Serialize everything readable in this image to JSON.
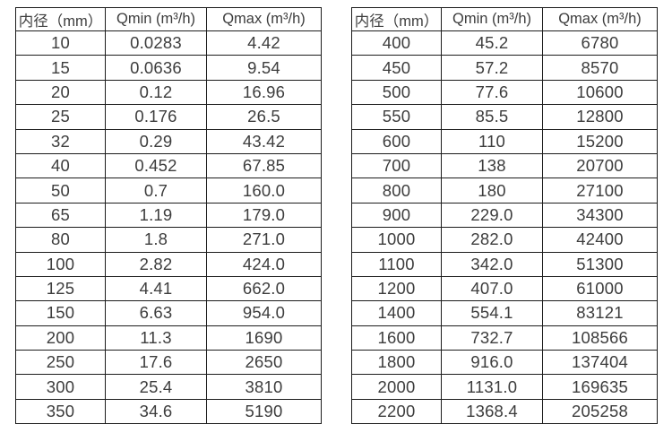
{
  "page": {
    "background": "#ffffff",
    "table_border_color": "#1c1c1c",
    "text_color": "#3d3d3d"
  },
  "chart_data": [
    {
      "type": "table",
      "name": "flow-range-small-diameters",
      "columns": [
        "内径（mm）",
        "Qmin (m³/h)",
        "Qmax (m³/h)"
      ],
      "rows": [
        [
          "10",
          "0.0283",
          "4.42"
        ],
        [
          "15",
          "0.0636",
          "9.54"
        ],
        [
          "20",
          "0.12",
          "16.96"
        ],
        [
          "25",
          "0.176",
          "26.5"
        ],
        [
          "32",
          "0.29",
          "43.42"
        ],
        [
          "40",
          "0.452",
          "67.85"
        ],
        [
          "50",
          "0.7",
          "160.0"
        ],
        [
          "65",
          "1.19",
          "179.0"
        ],
        [
          "80",
          "1.8",
          "271.0"
        ],
        [
          "100",
          "2.82",
          "424.0"
        ],
        [
          "125",
          "4.41",
          "662.0"
        ],
        [
          "150",
          "6.63",
          "954.0"
        ],
        [
          "200",
          "11.3",
          "1690"
        ],
        [
          "250",
          "17.6",
          "2650"
        ],
        [
          "300",
          "25.4",
          "3810"
        ],
        [
          "350",
          "34.6",
          "5190"
        ]
      ]
    },
    {
      "type": "table",
      "name": "flow-range-large-diameters",
      "columns": [
        "内径（mm）",
        "Qmin (m³/h)",
        "Qmax (m³/h)"
      ],
      "rows": [
        [
          "400",
          "45.2",
          "6780"
        ],
        [
          "450",
          "57.2",
          "8570"
        ],
        [
          "500",
          "77.6",
          "10600"
        ],
        [
          "550",
          "85.5",
          "12800"
        ],
        [
          "600",
          "110",
          "15200"
        ],
        [
          "700",
          "138",
          "20700"
        ],
        [
          "800",
          "180",
          "27100"
        ],
        [
          "900",
          "229.0",
          "34300"
        ],
        [
          "1000",
          "282.0",
          "42400"
        ],
        [
          "1100",
          "342.0",
          "51300"
        ],
        [
          "1200",
          "407.0",
          "61000"
        ],
        [
          "1400",
          "554.1",
          "83121"
        ],
        [
          "1600",
          "732.7",
          "108566"
        ],
        [
          "1800",
          "916.0",
          "137404"
        ],
        [
          "2000",
          "1131.0",
          "169635"
        ],
        [
          "2200",
          "1368.4",
          "205258"
        ]
      ]
    }
  ]
}
